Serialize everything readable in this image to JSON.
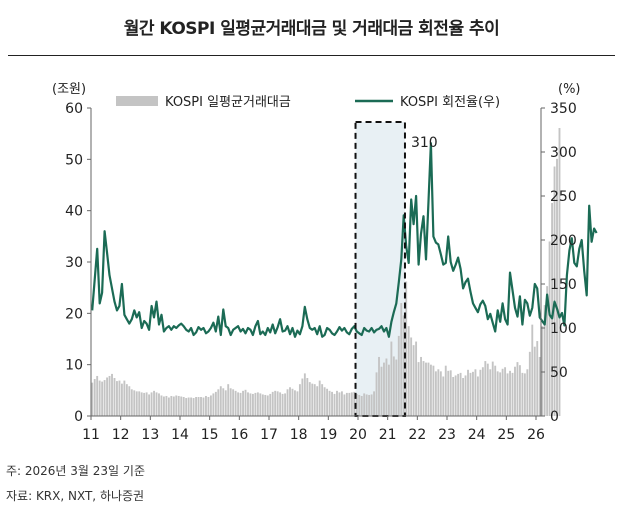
{
  "title": "월간 KOSPI 일평균거래대금 및 거래대금 회전율 추이",
  "notes": {
    "base_date": "주: 2026년 3월 23일 기준",
    "source": "자료: KRX, NXT, 하나증권"
  },
  "colors": {
    "bars": "#c4c4c4",
    "line": "#1b6b55",
    "highlight_fill": "#e8f0f4",
    "box": "#111111"
  },
  "chart_data": {
    "type": "bar+line",
    "title": "월간 KOSPI 일평균거래대금 및 거래대금 회전율 추이",
    "left_axis": {
      "unit": "(조원)",
      "ticks": [
        0,
        10,
        20,
        30,
        40,
        50,
        60
      ],
      "ylim": [
        0,
        60
      ]
    },
    "right_axis": {
      "unit": "(%)",
      "ticks": [
        0,
        50,
        100,
        150,
        200,
        250,
        300,
        350
      ],
      "ylim": [
        0,
        350
      ]
    },
    "x_ticks": [
      "11",
      "12",
      "13",
      "14",
      "15",
      "16",
      "17",
      "18",
      "19",
      "20",
      "21",
      "22",
      "23",
      "24",
      "25",
      "26"
    ],
    "legend": {
      "bars": "KOSPI 일평균거래대금",
      "line": "KOSPI 회전율(우)"
    },
    "annotation": {
      "label": "310",
      "highlight_range": [
        "2020-01",
        "2021-06"
      ]
    },
    "start": "2011-01",
    "bar_values": [
      6.5,
      7.2,
      7.8,
      6.9,
      6.7,
      7.0,
      7.5,
      7.8,
      8.2,
      7.4,
      6.8,
      6.9,
      6.3,
      6.9,
      6.2,
      5.8,
      5.2,
      5.0,
      4.8,
      4.8,
      4.6,
      4.5,
      4.6,
      4.2,
      4.6,
      4.9,
      4.6,
      4.4,
      4.0,
      3.8,
      3.9,
      3.6,
      3.9,
      3.8,
      4.0,
      3.9,
      3.8,
      3.7,
      3.5,
      3.6,
      3.6,
      3.5,
      3.7,
      3.7,
      3.7,
      3.6,
      3.9,
      3.7,
      4.0,
      4.4,
      4.7,
      5.2,
      5.8,
      5.4,
      5.0,
      6.2,
      5.4,
      5.2,
      4.9,
      4.6,
      4.5,
      4.9,
      5.1,
      4.6,
      4.4,
      4.3,
      4.5,
      4.6,
      4.4,
      4.2,
      4.1,
      4.0,
      4.3,
      4.7,
      4.9,
      4.8,
      4.6,
      4.3,
      4.4,
      5.2,
      5.6,
      5.3,
      5.0,
      4.8,
      6.2,
      7.3,
      8.3,
      7.4,
      6.6,
      6.3,
      6.2,
      5.8,
      6.9,
      6.2,
      5.6,
      5.3,
      4.9,
      4.7,
      4.3,
      4.9,
      4.6,
      4.8,
      4.2,
      4.5,
      4.5,
      4.6,
      4.7,
      4.3,
      4.1,
      3.9,
      4.4,
      4.2,
      4.1,
      4.2,
      4.8,
      8.5,
      11.5,
      9.6,
      10.4,
      11.2,
      10.0,
      14.5,
      11.6,
      11.0,
      15.6,
      22.0,
      19.6,
      26.2,
      17.5,
      15.3,
      13.8,
      14.5,
      10.5,
      11.5,
      10.7,
      10.4,
      10.4,
      10.0,
      9.8,
      8.7,
      9.1,
      8.7,
      7.7,
      9.8,
      8.8,
      8.9,
      7.6,
      7.9,
      8.2,
      8.4,
      7.4,
      7.9,
      9.0,
      8.4,
      8.6,
      9.1,
      7.7,
      9.0,
      9.5,
      10.7,
      10.2,
      9.1,
      10.6,
      9.8,
      8.7,
      8.5,
      9.2,
      9.5,
      8.3,
      8.8,
      8.4,
      9.6,
      10.5,
      9.9,
      8.4,
      8.3,
      9.1,
      12.5,
      17.8,
      13.5,
      14.6,
      11.5,
      17.5,
      21.6,
      25.3,
      34.0,
      41.5,
      48.6,
      50.1,
      56.1
    ],
    "line_values": [
      120,
      155,
      190,
      128,
      140,
      210,
      185,
      160,
      145,
      130,
      120,
      125,
      150,
      115,
      110,
      105,
      110,
      120,
      112,
      118,
      100,
      108,
      105,
      98,
      125,
      112,
      130,
      104,
      115,
      96,
      100,
      102,
      98,
      102,
      100,
      103,
      105,
      102,
      98,
      96,
      100,
      92,
      95,
      101,
      98,
      100,
      94,
      96,
      100,
      106,
      96,
      113,
      92,
      121,
      102,
      100,
      92,
      98,
      100,
      102,
      96,
      99,
      94,
      100,
      98,
      92,
      102,
      108,
      93,
      96,
      92,
      100,
      95,
      104,
      94,
      101,
      110,
      96,
      97,
      102,
      93,
      100,
      90,
      97,
      93,
      102,
      124,
      110,
      100,
      98,
      100,
      93,
      102,
      90,
      92,
      100,
      98,
      94,
      92,
      96,
      101,
      97,
      100,
      95,
      93,
      99,
      102,
      96,
      94,
      92,
      100,
      97,
      96,
      100,
      95,
      98,
      99,
      102,
      96,
      100,
      90,
      107,
      118,
      128,
      152,
      178,
      228,
      193,
      174,
      246,
      218,
      250,
      172,
      207,
      227,
      178,
      244,
      310,
      204,
      197,
      195,
      184,
      172,
      174,
      204,
      175,
      165,
      172,
      180,
      167,
      145,
      152,
      156,
      141,
      128,
      123,
      118,
      127,
      131,
      125,
      110,
      116,
      106,
      96,
      120,
      107,
      128,
      110,
      104,
      163,
      143,
      123,
      113,
      136,
      104,
      132,
      128,
      114,
      123,
      150,
      145,
      112,
      108,
      104,
      138,
      115,
      111,
      130,
      122,
      112,
      117,
      103,
      160,
      188,
      202,
      174,
      170,
      190,
      200,
      165,
      137,
      239,
      198,
      213,
      208
    ]
  }
}
